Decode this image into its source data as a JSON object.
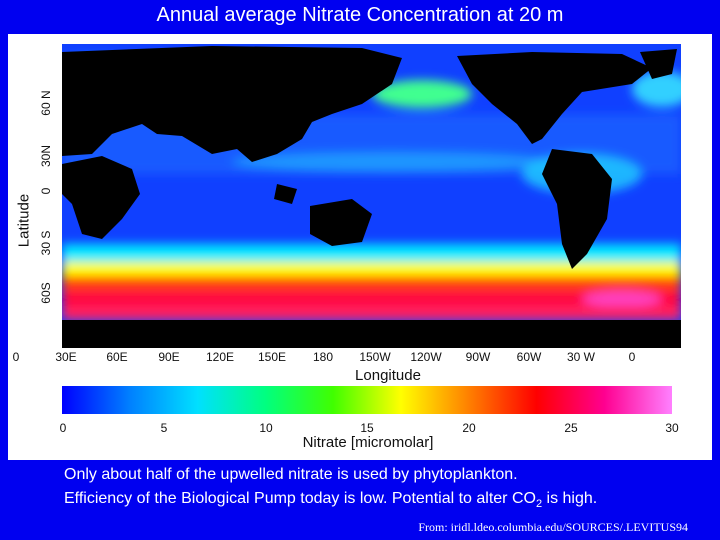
{
  "title": "Annual average Nitrate Concentration at 20 m",
  "map": {
    "y_axis_label": "Latitude",
    "y_ticks": [
      "60 N",
      "30N",
      "0",
      "30 S",
      "60S"
    ],
    "x_axis_label": "Longitude",
    "x_ticks": [
      "0",
      "30E",
      "60E",
      "90E",
      "120E",
      "150E",
      "180",
      "150W",
      "120W",
      "90W",
      "60W",
      "30 W",
      "0"
    ],
    "colorbar": {
      "label": "Nitrate [micromolar]",
      "ticks": [
        "0",
        "5",
        "10",
        "15",
        "20",
        "25",
        "30"
      ],
      "range": [
        0,
        30
      ],
      "colors": [
        "#0000ff",
        "#0080ff",
        "#00e0ff",
        "#00ff80",
        "#40ff00",
        "#ffff00",
        "#ff8000",
        "#ff0000",
        "#ff0090",
        "#ff80ff"
      ]
    },
    "ocean_color": "#1040ff",
    "land_color": "#000000"
  },
  "caption": {
    "line1": "Only about half of the upwelled nitrate is used  by phytoplankton.",
    "line2_a": "Efficiency of the Biological Pump today is low.  Potential to alter CO",
    "line2_sub": "2",
    "line2_b": " is high."
  },
  "source": "From:   iridl.ldeo.columbia.edu/SOURCES/.LEVITUS94"
}
